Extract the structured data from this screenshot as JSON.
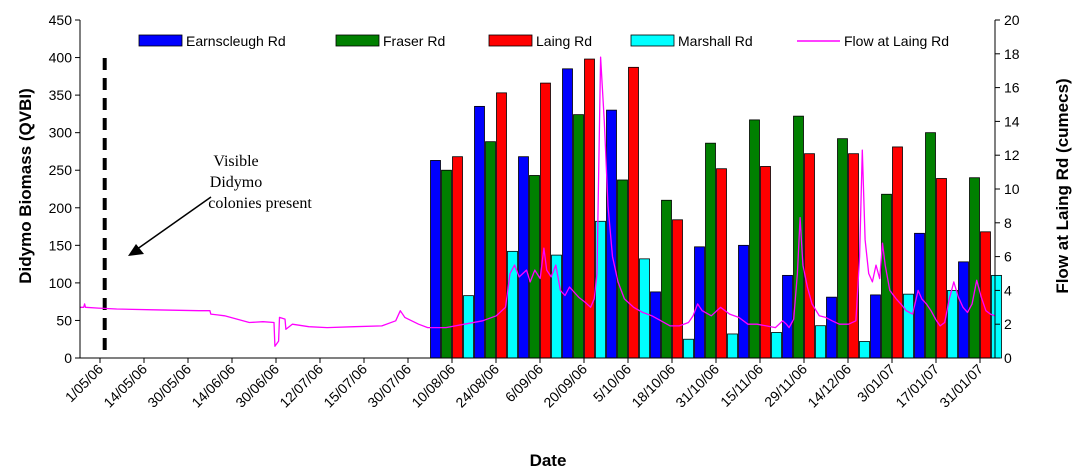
{
  "chart_data": {
    "type": "bar",
    "title": "",
    "xlabel": "Date",
    "ylabel": "Didymo Biomass (QVBI)",
    "y2label": "Flow at Laing Rd (cumecs)",
    "ylim": [
      0,
      450
    ],
    "y2lim": [
      0,
      20
    ],
    "yticks": [
      0,
      50,
      100,
      150,
      200,
      250,
      300,
      350,
      400,
      450
    ],
    "y2ticks": [
      0,
      2,
      4,
      6,
      8,
      10,
      12,
      14,
      16,
      18,
      20
    ],
    "date_ticks": [
      "1/05/06",
      "14/05/06",
      "30/05/06",
      "14/06/06",
      "30/06/06",
      "12/07/06",
      "15/07/06",
      "30/07/06",
      "10/08/06",
      "24/08/06",
      "6/09/06",
      "20/09/06",
      "5/10/06",
      "18/10/06",
      "31/10/06",
      "15/11/06",
      "29/11/06",
      "14/12/06",
      "3/01/07",
      "17/01/07",
      "31/01/07"
    ],
    "legend_position": "top",
    "grid": false,
    "colors": {
      "Earnscleugh Rd": "#0000ff",
      "Fraser Rd": "#008000",
      "Laing Rd": "#ff0000",
      "Marshall Rd": "#00ffff",
      "Flow at Laing Rd": "#ff00ff"
    },
    "bar_series": [
      "Earnscleugh Rd",
      "Fraser Rd",
      "Laing Rd",
      "Marshall Rd"
    ],
    "line_series": "Flow at Laing Rd",
    "sample_groups": [
      {
        "values": [
          263,
          250,
          268,
          83
        ]
      },
      {
        "values": [
          335,
          288,
          353,
          142
        ]
      },
      {
        "values": [
          268,
          243,
          366,
          137
        ]
      },
      {
        "values": [
          385,
          324,
          398,
          182
        ]
      },
      {
        "values": [
          330,
          237,
          387,
          132
        ]
      },
      {
        "values": [
          88,
          210,
          184,
          25
        ]
      },
      {
        "values": [
          148,
          286,
          252,
          32
        ]
      },
      {
        "values": [
          150,
          317,
          255,
          34
        ]
      },
      {
        "values": [
          110,
          322,
          272,
          43
        ]
      },
      {
        "values": [
          81,
          292,
          272,
          22
        ]
      },
      {
        "values": [
          84,
          218,
          281,
          85
        ]
      },
      {
        "values": [
          166,
          300,
          239,
          90
        ]
      },
      {
        "values": [
          128,
          240,
          168,
          110
        ]
      }
    ],
    "flow": [
      [
        0,
        3.0
      ],
      [
        4,
        3.0
      ],
      [
        5,
        3.2
      ],
      [
        6,
        3.0
      ],
      [
        20,
        2.95
      ],
      [
        40,
        2.9
      ],
      [
        80,
        2.85
      ],
      [
        130,
        2.8
      ],
      [
        142,
        2.8
      ],
      [
        143,
        2.6
      ],
      [
        150,
        2.55
      ],
      [
        158,
        2.5
      ],
      [
        178,
        2.2
      ],
      [
        185,
        2.1
      ],
      [
        200,
        2.15
      ],
      [
        212,
        2.1
      ],
      [
        213,
        0.7
      ],
      [
        217,
        1.0
      ],
      [
        218,
        2.4
      ],
      [
        224,
        2.3
      ],
      [
        225,
        1.7
      ],
      [
        232,
        2.0
      ],
      [
        250,
        1.85
      ],
      [
        270,
        1.8
      ],
      [
        300,
        1.85
      ],
      [
        330,
        1.9
      ],
      [
        345,
        2.2
      ],
      [
        350,
        2.8
      ],
      [
        355,
        2.4
      ],
      [
        370,
        2.0
      ],
      [
        380,
        1.8
      ],
      [
        400,
        1.8
      ],
      [
        420,
        2.0
      ],
      [
        440,
        2.2
      ],
      [
        455,
        2.5
      ],
      [
        465,
        3.0
      ],
      [
        470,
        5.0
      ],
      [
        475,
        5.5
      ],
      [
        480,
        4.8
      ],
      [
        488,
        5.2
      ],
      [
        492,
        4.5
      ],
      [
        497,
        5.2
      ],
      [
        503,
        4.7
      ],
      [
        507,
        6.5
      ],
      [
        510,
        5.2
      ],
      [
        515,
        4.8
      ],
      [
        520,
        5.5
      ],
      [
        525,
        4.0
      ],
      [
        530,
        3.7
      ],
      [
        535,
        4.2
      ],
      [
        545,
        3.6
      ],
      [
        552,
        3.3
      ],
      [
        558,
        3.0
      ],
      [
        562,
        3.5
      ],
      [
        565,
        5.0
      ],
      [
        569,
        17.8
      ],
      [
        573,
        14.0
      ],
      [
        577,
        9.0
      ],
      [
        582,
        6.0
      ],
      [
        588,
        4.5
      ],
      [
        595,
        3.5
      ],
      [
        605,
        3.0
      ],
      [
        615,
        2.7
      ],
      [
        625,
        2.5
      ],
      [
        635,
        2.2
      ],
      [
        645,
        1.9
      ],
      [
        655,
        1.9
      ],
      [
        665,
        2.1
      ],
      [
        670,
        2.5
      ],
      [
        675,
        3.2
      ],
      [
        680,
        2.8
      ],
      [
        690,
        2.5
      ],
      [
        700,
        3.0
      ],
      [
        710,
        2.6
      ],
      [
        720,
        2.4
      ],
      [
        730,
        2.0
      ],
      [
        740,
        2.0
      ],
      [
        750,
        1.9
      ],
      [
        760,
        1.8
      ],
      [
        768,
        2.2
      ],
      [
        772,
        2.0
      ],
      [
        775,
        1.8
      ],
      [
        780,
        2.3
      ],
      [
        784,
        5.0
      ],
      [
        787,
        8.3
      ],
      [
        790,
        5.5
      ],
      [
        795,
        4.2
      ],
      [
        800,
        3.2
      ],
      [
        808,
        2.5
      ],
      [
        815,
        2.4
      ],
      [
        822,
        2.2
      ],
      [
        830,
        2.0
      ],
      [
        840,
        2.0
      ],
      [
        848,
        2.2
      ],
      [
        852,
        6.0
      ],
      [
        855,
        12.3
      ],
      [
        858,
        7.0
      ],
      [
        862,
        5.0
      ],
      [
        866,
        4.5
      ],
      [
        870,
        5.5
      ],
      [
        874,
        4.7
      ],
      [
        877,
        6.8
      ],
      [
        880,
        5.5
      ],
      [
        885,
        4.0
      ],
      [
        892,
        3.5
      ],
      [
        897,
        3.2
      ],
      [
        903,
        2.8
      ],
      [
        910,
        2.6
      ],
      [
        916,
        4.0
      ],
      [
        920,
        3.5
      ],
      [
        925,
        3.2
      ],
      [
        930,
        2.8
      ],
      [
        935,
        2.3
      ],
      [
        940,
        1.9
      ],
      [
        945,
        2.1
      ],
      [
        950,
        3.5
      ],
      [
        955,
        4.5
      ],
      [
        960,
        3.6
      ],
      [
        965,
        3.0
      ],
      [
        970,
        2.7
      ],
      [
        975,
        3.2
      ],
      [
        980,
        4.6
      ],
      [
        985,
        3.6
      ],
      [
        990,
        2.8
      ],
      [
        995,
        2.6
      ],
      [
        1000,
        2.5
      ]
    ],
    "marker_position": 27,
    "annotation": {
      "lines": [
        "Visible",
        "Didymo",
        "colonies present"
      ]
    }
  }
}
